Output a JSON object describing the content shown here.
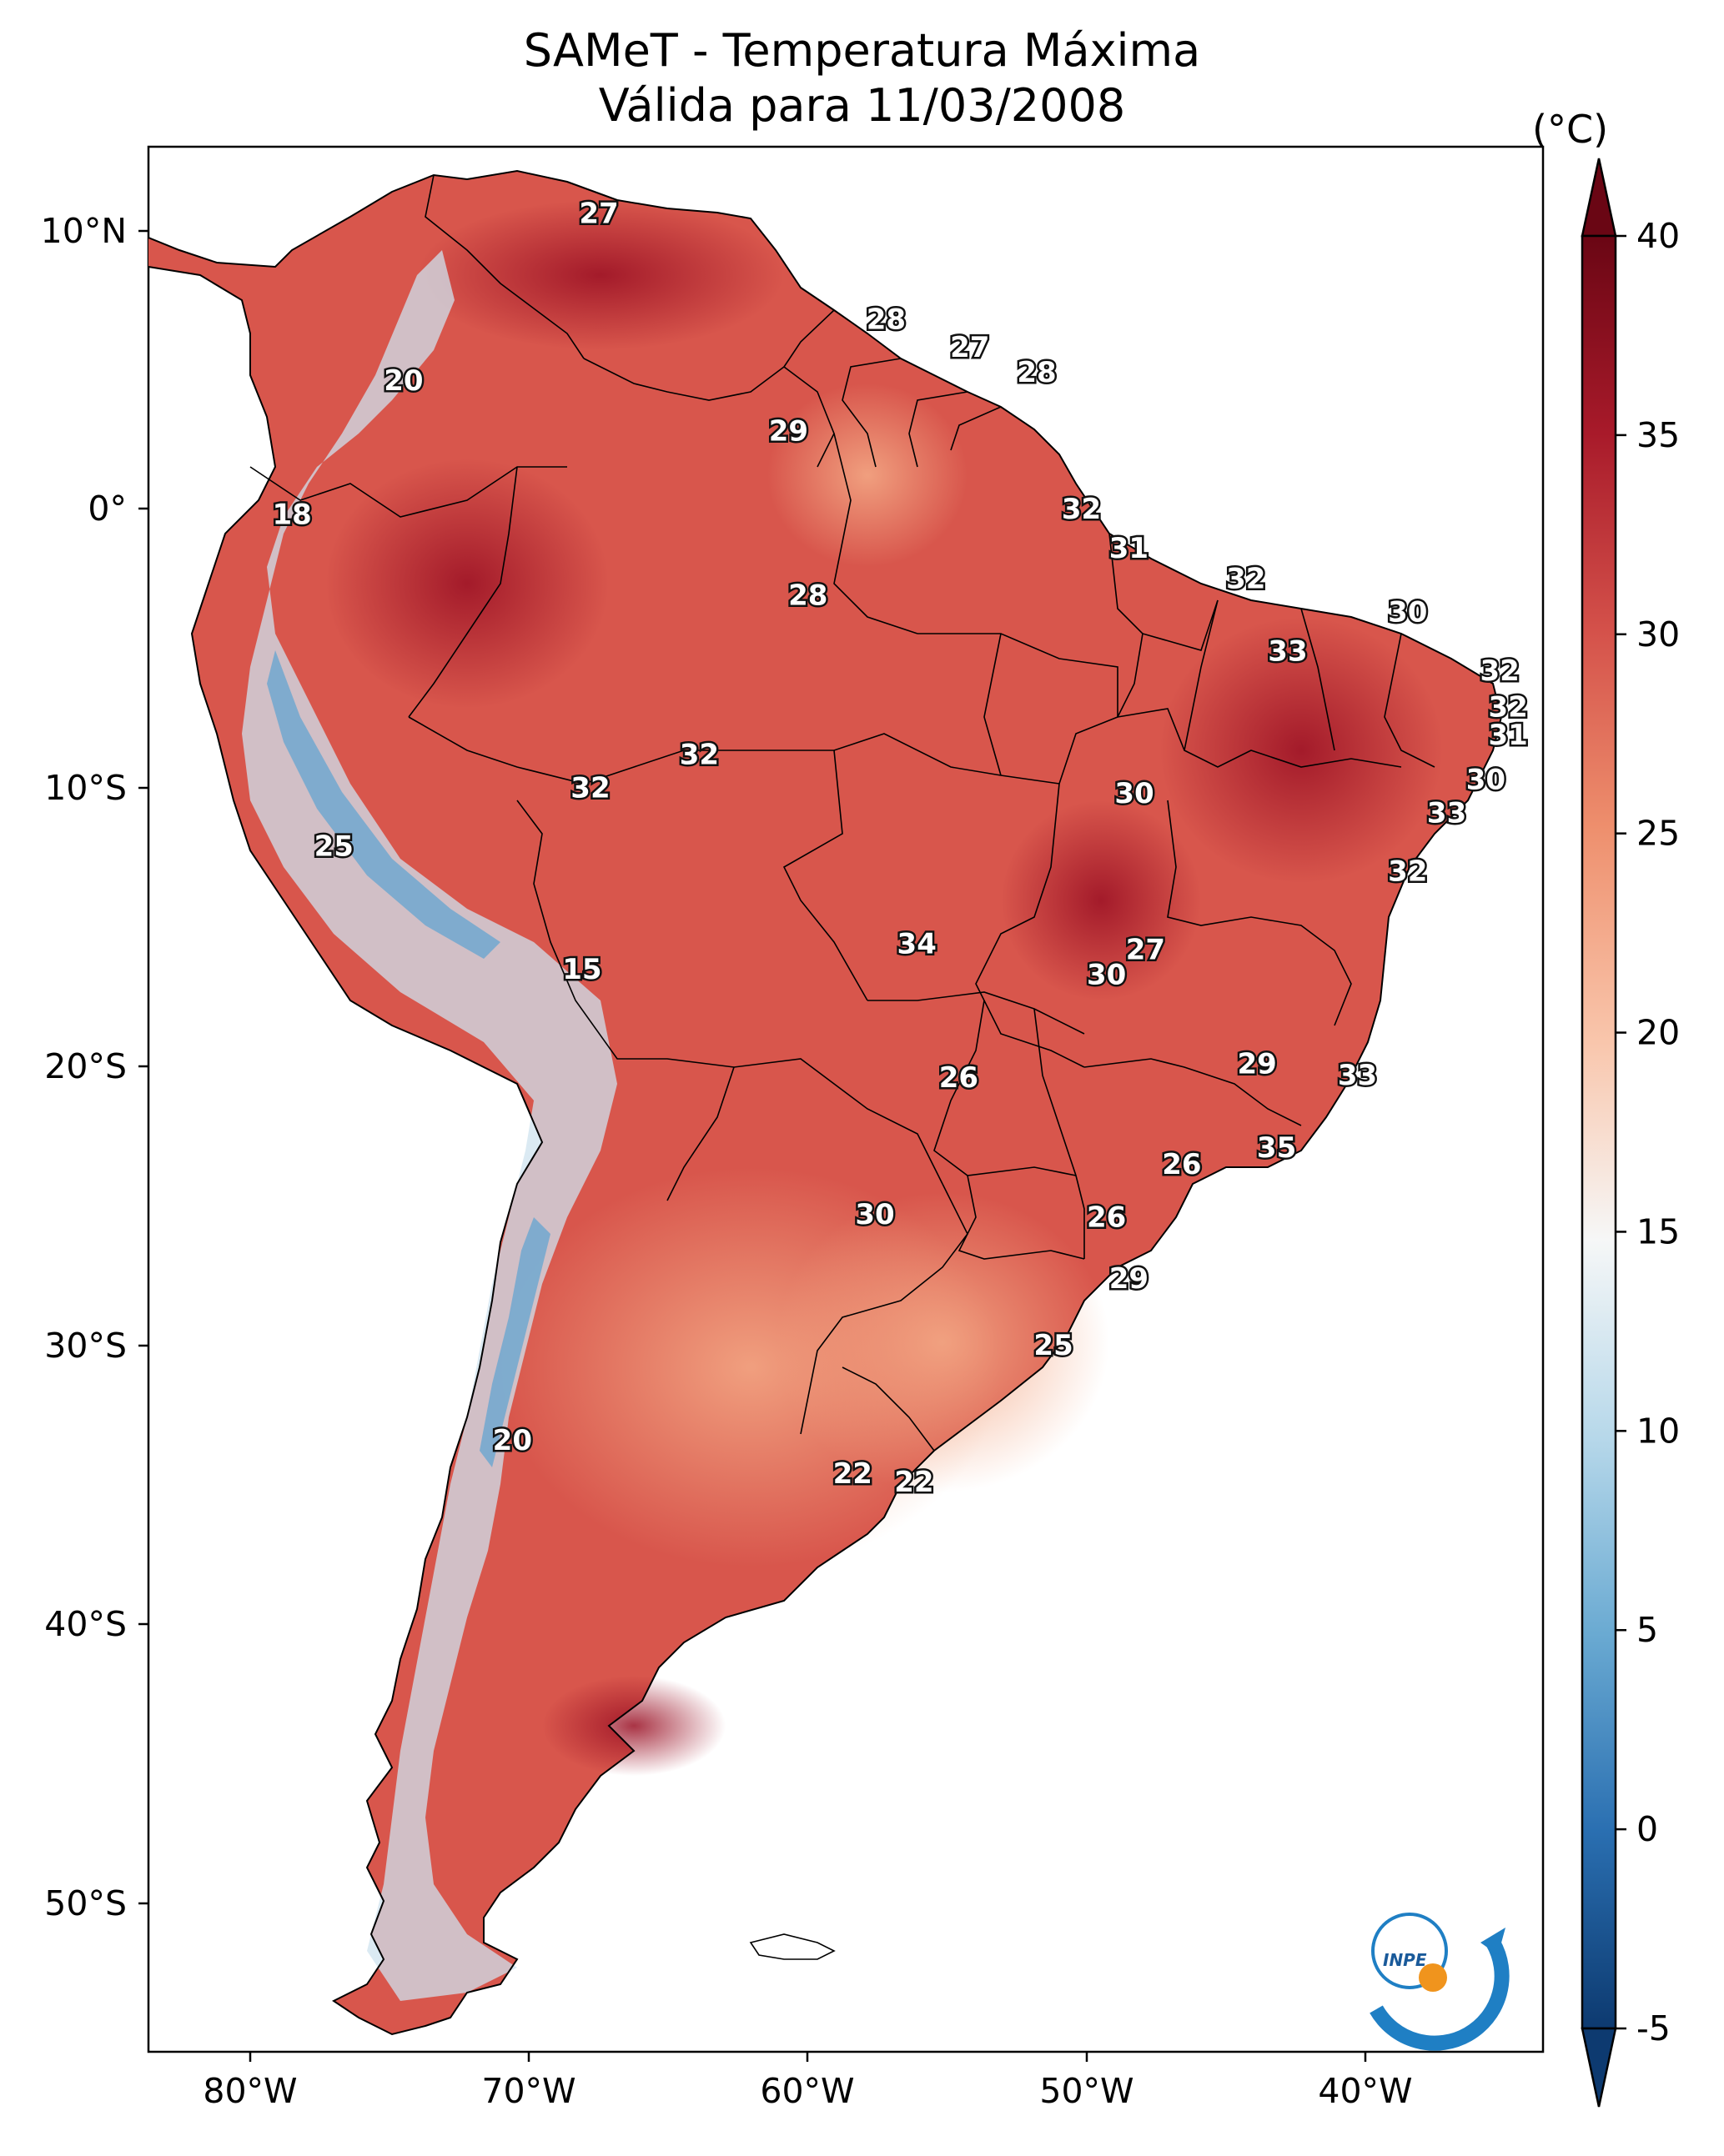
{
  "title": {
    "line1": "SAMeT - Temperatura Máxima",
    "line2": "Válida para 11/03/2008"
  },
  "colorbar": {
    "unit": "(°C)",
    "ticks": [
      "-5",
      "0",
      "5",
      "10",
      "15",
      "20",
      "25",
      "30",
      "35",
      "40"
    ],
    "range": [
      -5,
      40
    ],
    "extend": "both",
    "colormap": "RdBu_r",
    "colors": [
      "#0d3a70",
      "#2a6fb1",
      "#6aaad2",
      "#b7d8ea",
      "#f6f7f7",
      "#f9c6ac",
      "#ee8f6d",
      "#d4514a",
      "#a81a2a",
      "#6a0614"
    ]
  },
  "axes": {
    "lat_ticks": [
      "10°N",
      "0°",
      "10°S",
      "20°S",
      "30°S",
      "40°S",
      "50°S"
    ],
    "lon_ticks": [
      "80°W",
      "70°W",
      "60°W",
      "50°W",
      "40°W"
    ],
    "lat_range": [
      -56,
      13
    ],
    "lon_range": [
      -83,
      -33
    ]
  },
  "logo": {
    "text": "INPE"
  },
  "chart_data": {
    "type": "heatmap",
    "title": "SAMeT - Temperatura Máxima",
    "subtitle": "Válida para 11/03/2008",
    "variable": "max temperature (°C)",
    "station_values": [
      {
        "lon": -67.5,
        "lat": 10.6,
        "value": 27
      },
      {
        "lon": -74.5,
        "lat": 4.6,
        "value": 20
      },
      {
        "lon": -57.2,
        "lat": 6.8,
        "value": 28
      },
      {
        "lon": -54.2,
        "lat": 5.8,
        "value": 27
      },
      {
        "lon": -51.8,
        "lat": 4.9,
        "value": 28
      },
      {
        "lon": -60.7,
        "lat": 2.8,
        "value": 29
      },
      {
        "lon": -78.5,
        "lat": -0.2,
        "value": 18
      },
      {
        "lon": -50.2,
        "lat": 0.0,
        "value": 32
      },
      {
        "lon": -48.5,
        "lat": -1.4,
        "value": 31
      },
      {
        "lon": -60.0,
        "lat": -3.1,
        "value": 28
      },
      {
        "lon": -44.3,
        "lat": -2.5,
        "value": 32
      },
      {
        "lon": -38.5,
        "lat": -3.7,
        "value": 30
      },
      {
        "lon": -42.8,
        "lat": -5.1,
        "value": 33
      },
      {
        "lon": -35.2,
        "lat": -5.8,
        "value": 32
      },
      {
        "lon": -34.9,
        "lat": -7.1,
        "value": 32
      },
      {
        "lon": -34.9,
        "lat": -8.1,
        "value": 31
      },
      {
        "lon": -63.9,
        "lat": -8.8,
        "value": 32
      },
      {
        "lon": -67.8,
        "lat": -10.0,
        "value": 32
      },
      {
        "lon": -48.3,
        "lat": -10.2,
        "value": 30
      },
      {
        "lon": -35.7,
        "lat": -9.7,
        "value": 30
      },
      {
        "lon": -37.1,
        "lat": -10.9,
        "value": 33
      },
      {
        "lon": -77.0,
        "lat": -12.1,
        "value": 25
      },
      {
        "lon": -38.5,
        "lat": -13.0,
        "value": 32
      },
      {
        "lon": -56.1,
        "lat": -15.6,
        "value": 34
      },
      {
        "lon": -47.9,
        "lat": -15.8,
        "value": 27
      },
      {
        "lon": -49.3,
        "lat": -16.7,
        "value": 30
      },
      {
        "lon": -68.1,
        "lat": -16.5,
        "value": 15
      },
      {
        "lon": -43.9,
        "lat": -19.9,
        "value": 29
      },
      {
        "lon": -40.3,
        "lat": -20.3,
        "value": 33
      },
      {
        "lon": -54.6,
        "lat": -20.4,
        "value": 26
      },
      {
        "lon": -43.2,
        "lat": -22.9,
        "value": 35
      },
      {
        "lon": -46.6,
        "lat": -23.5,
        "value": 26
      },
      {
        "lon": -57.6,
        "lat": -25.3,
        "value": 30
      },
      {
        "lon": -49.3,
        "lat": -25.4,
        "value": 26
      },
      {
        "lon": -48.5,
        "lat": -27.6,
        "value": 29
      },
      {
        "lon": -51.2,
        "lat": -30.0,
        "value": 25
      },
      {
        "lon": -70.6,
        "lat": -33.4,
        "value": 20
      },
      {
        "lon": -58.4,
        "lat": -34.6,
        "value": 22
      },
      {
        "lon": -56.2,
        "lat": -34.9,
        "value": 22
      }
    ]
  }
}
